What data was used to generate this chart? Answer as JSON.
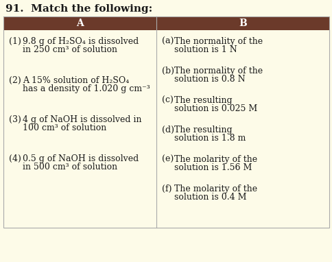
{
  "title": "91.  Match the following:",
  "header_bg": "#6b3a2a",
  "header_text_color": "#ffffff",
  "body_bg": "#fdfbe8",
  "text_color": "#1a1a1a",
  "col_a_header": "A",
  "col_b_header": "B",
  "col_a_items": [
    [
      "(1)",
      "9.8 g of H₂SO₄ is dissolved",
      "in 250 cm³ of solution"
    ],
    [
      "(2)",
      "A 15% solution of H₂SO₄",
      "has a density of 1.020 g cm⁻³"
    ],
    [
      "(3)",
      "4 g of NaOH is dissolved in",
      "100 cm³ of solution"
    ],
    [
      "(4)",
      "0.5 g of NaOH is dissolved",
      "in 500 cm³ of solution"
    ]
  ],
  "col_b_items": [
    [
      "(a)",
      "The normality of the",
      "solution is 1 N"
    ],
    [
      "(b)",
      "The normality of the",
      "solution is 0.8 N"
    ],
    [
      "(c)",
      "The resulting",
      "solution is 0.025 M"
    ],
    [
      "(d)",
      "The resulting",
      "solution is 1.8 m"
    ],
    [
      "(e)",
      "The molarity of the",
      "solution is 1.56 M"
    ],
    [
      "(f)",
      "The molarity of the",
      "solution is 0.4 M"
    ]
  ],
  "title_fontsize": 11,
  "header_fontsize": 10,
  "body_fontsize": 9
}
